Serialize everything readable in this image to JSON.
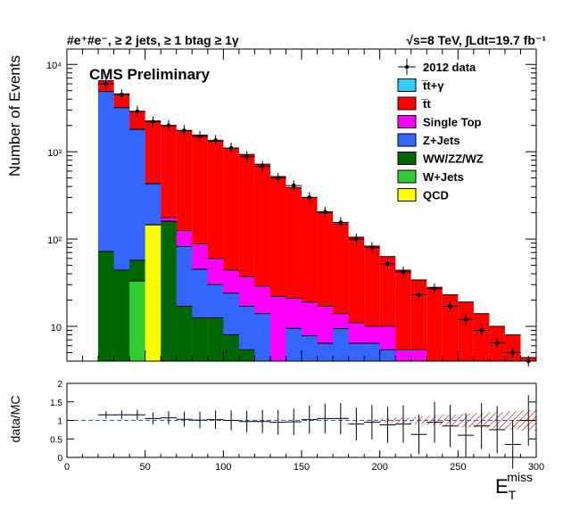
{
  "header": {
    "left_title": "#e⁺#e⁻, ≥ 2 jets, ≥ 1 btag ≥ 1γ",
    "right_title": "√s=8 TeV,  ∫Ldt=19.7 fb⁻¹"
  },
  "watermark": "CMS Preliminary",
  "colors": {
    "ttgamma": "#33ccff",
    "ttbar": "#ff0000",
    "single_top": "#ff00ff",
    "zjets": "#3366ff",
    "diboson": "#006600",
    "wjets": "#33cc33",
    "qcd": "#ffff00",
    "data": "#000000",
    "uncertainty": "#cc0000"
  },
  "chart_data": [
    {
      "type": "bar",
      "stacked": true,
      "log_y": true,
      "ylabel": "Number of Events",
      "xlim": [
        0,
        300
      ],
      "ylim": [
        4,
        15000
      ],
      "bin_edges": [
        20,
        30,
        40,
        50,
        60,
        70,
        80,
        90,
        100,
        110,
        120,
        130,
        140,
        150,
        160,
        170,
        180,
        190,
        200,
        210,
        220,
        230,
        240,
        250,
        260,
        270,
        280,
        290,
        300
      ],
      "y_ticks": [
        {
          "value": 10,
          "label": "10"
        },
        {
          "value": 100,
          "label": "10²"
        },
        {
          "value": 1000,
          "label": "10³"
        },
        {
          "value": 10000,
          "label": "10⁴"
        }
      ],
      "legend_position": "top-right",
      "legend": [
        {
          "key": "data",
          "label": "2012 data",
          "style": "marker"
        },
        {
          "key": "ttgamma",
          "label": "t̅t+γ",
          "style": "fill"
        },
        {
          "key": "ttbar",
          "label": "t̅t",
          "style": "fill"
        },
        {
          "key": "single_top",
          "label": "Single Top",
          "style": "fill"
        },
        {
          "key": "zjets",
          "label": "Z+Jets",
          "style": "fill"
        },
        {
          "key": "diboson",
          "label": "WW/ZZ/WZ",
          "style": "fill"
        },
        {
          "key": "wjets",
          "label": "W+Jets",
          "style": "fill"
        },
        {
          "key": "qcd",
          "label": "QCD",
          "style": "fill"
        }
      ],
      "stack_tops": [
        {
          "key": "ttbar",
          "values": [
            6500,
            4600,
            2900,
            2250,
            2000,
            1750,
            1550,
            1320,
            1100,
            930,
            720,
            520,
            390,
            300,
            200,
            150,
            105,
            83,
            63,
            44,
            34,
            28,
            23,
            19,
            14,
            10,
            8,
            4.4
          ]
        },
        {
          "key": "single_top",
          "values": [
            4900,
            3200,
            1800,
            430,
            175,
            125,
            88,
            60,
            44,
            37,
            29,
            22,
            21,
            19,
            17,
            14,
            11,
            10,
            10,
            5.4,
            5.4,
            4,
            4,
            4,
            4,
            4,
            4,
            4
          ]
        },
        {
          "key": "zjets",
          "values": [
            4900,
            3200,
            1800,
            430,
            160,
            82,
            45,
            30,
            24,
            17,
            14,
            4,
            9.5,
            7.8,
            6.4,
            9.4,
            6.4,
            6.4,
            5.4,
            4,
            4,
            4,
            4,
            4,
            4,
            4,
            4,
            4
          ]
        },
        {
          "key": "diboson",
          "values": [
            72,
            44,
            57,
            145,
            160,
            17,
            12.5,
            12.5,
            8,
            5.4,
            4,
            4,
            4,
            4,
            4,
            4,
            4,
            4,
            4,
            4,
            4,
            4,
            4,
            4,
            4,
            4,
            4,
            4
          ]
        },
        {
          "key": "wjets",
          "values": [
            0,
            0,
            33,
            145,
            0,
            0,
            0,
            0,
            0,
            0,
            0,
            0,
            0,
            0,
            0,
            0,
            0,
            0,
            0,
            0,
            0,
            0,
            0,
            0,
            0,
            0,
            0,
            0
          ]
        },
        {
          "key": "qcd",
          "values": [
            0,
            0,
            0,
            145,
            0,
            0,
            0,
            0,
            0,
            0,
            0,
            0,
            0,
            0,
            0,
            0,
            0,
            0,
            0,
            0,
            0,
            0,
            0,
            0,
            0,
            0,
            0,
            0
          ]
        }
      ],
      "data_points": {
        "x": [
          25,
          35,
          45,
          55,
          65,
          75,
          85,
          95,
          105,
          115,
          125,
          135,
          145,
          155,
          165,
          175,
          185,
          195,
          205,
          215,
          225,
          235,
          245,
          255,
          265,
          275,
          285,
          295
        ],
        "y": [
          6000,
          4500,
          2900,
          2200,
          2000,
          1750,
          1500,
          1350,
          1100,
          880,
          680,
          500,
          410,
          300,
          205,
          155,
          100,
          80,
          52,
          42,
          23,
          27,
          17,
          12,
          9,
          6.5,
          5,
          3.9
        ]
      }
    },
    {
      "type": "scatter",
      "ylabel": "data/MC",
      "xlabel": "E_T^miss",
      "xlim": [
        0,
        300
      ],
      "ylim": [
        0,
        2
      ],
      "x_ticks": [
        0,
        50,
        100,
        150,
        200,
        250,
        300
      ],
      "y_ticks": [
        "0",
        "0.5",
        "1",
        "1.5",
        "2"
      ],
      "reference_line": 1,
      "x": [
        25,
        35,
        45,
        55,
        65,
        75,
        85,
        95,
        105,
        115,
        125,
        135,
        145,
        155,
        165,
        175,
        185,
        195,
        205,
        215,
        225,
        235,
        245,
        255,
        265,
        275,
        285,
        295
      ],
      "ratio": [
        1.15,
        1.15,
        1.15,
        1.05,
        1.07,
        1.03,
        1.01,
        1.02,
        1.0,
        0.97,
        0.97,
        0.95,
        0.96,
        1.02,
        1.05,
        1.05,
        0.9,
        0.95,
        0.88,
        0.9,
        0.62,
        0.95,
        0.85,
        0.6,
        0.85,
        0.75,
        0.35,
        1.0
      ],
      "uncertainty_band": {
        "from_x": 190,
        "half_width": [
          0.03,
          0.06,
          0.08,
          0.1,
          0.12,
          0.15,
          0.18,
          0.2,
          0.22,
          0.25,
          0.28
        ]
      }
    }
  ]
}
